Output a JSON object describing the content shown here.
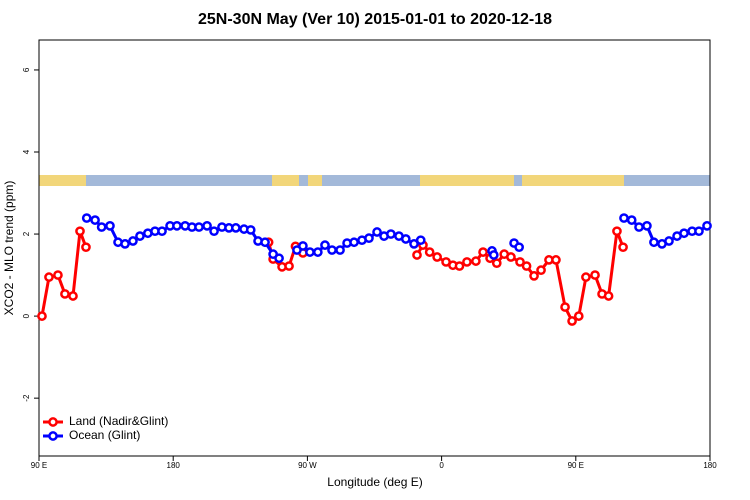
{
  "chart_data": {
    "type": "line",
    "title": "25N-30N May (Ver 10)   2015-01-01 to 2020-12-18",
    "x_label": "Longitude (deg E)",
    "y_label": "XCO2 - MLO trend (ppm)",
    "xlim": [
      90,
      540
    ],
    "ylim": [
      -3.41,
      6.73
    ],
    "xticks": [
      {
        "value": 90,
        "label": "90 E"
      },
      180,
      {
        "value": 270,
        "label": "90 W"
      },
      {
        "value": 360,
        "label": "0"
      },
      {
        "value": 450,
        "label": "90 E"
      },
      {
        "value": 540,
        "label": "180"
      }
    ],
    "yticks": [
      -2,
      0,
      2,
      4,
      6
    ],
    "legend": "bottomleft",
    "series": [
      {
        "name": "Land (Nadir&Glint)",
        "color": "#ff0000",
        "x": [
          92,
          96.7,
          102.7,
          107.4,
          112.8,
          117.5,
          121.5,
          null,
          244,
          247,
          253,
          257.7,
          262,
          267,
          null,
          343.5,
          347.5,
          352,
          357,
          363,
          367.6,
          372,
          377,
          383,
          387.8,
          392.5,
          397,
          402,
          406.5,
          412.6,
          417,
          422,
          426.7,
          432,
          436.7,
          442.8,
          447.5,
          452,
          456.8,
          462.9,
          467.6,
          472,
          477.6,
          481.7
        ],
        "values": [
          0.0,
          0.95,
          1.0,
          0.54,
          0.49,
          2.07,
          1.68,
          null,
          1.8,
          1.39,
          1.2,
          1.22,
          1.7,
          1.54,
          null,
          1.49,
          1.73,
          1.56,
          1.44,
          1.32,
          1.24,
          1.22,
          1.32,
          1.34,
          1.56,
          1.41,
          1.29,
          1.51,
          1.44,
          1.32,
          1.22,
          0.98,
          1.12,
          1.37,
          1.37,
          0.22,
          -0.12,
          0.0,
          0.95,
          1.0,
          0.54,
          0.49,
          2.07,
          1.68
        ]
      },
      {
        "name": "Ocean (Glint)",
        "color": "#0000ff",
        "x": [
          122,
          127.6,
          132,
          137.6,
          143,
          147.7,
          153,
          157.7,
          163,
          167.8,
          172.5,
          177.9,
          182.5,
          188,
          192.6,
          197.3,
          202.7,
          207.4,
          212.7,
          217.4,
          222,
          227.5,
          232,
          236.9,
          241.6,
          247,
          251,
          null,
          263,
          267,
          271.7,
          277,
          281.8,
          286.5,
          291.9,
          296.6,
          301.3,
          306.6,
          311.3,
          316.7,
          321.4,
          326,
          331.4,
          336,
          341.5,
          346,
          null,
          393.8,
          395,
          null,
          408.6,
          412,
          null,
          482.3,
          487.5,
          492.4,
          497.7,
          502.4,
          507.8,
          512.5,
          517.9,
          522.6,
          528,
          532.6,
          538
        ],
        "values": [
          2.39,
          2.34,
          2.17,
          2.2,
          1.8,
          1.76,
          1.83,
          1.95,
          2.02,
          2.07,
          2.07,
          2.2,
          2.2,
          2.2,
          2.17,
          2.17,
          2.2,
          2.07,
          2.17,
          2.15,
          2.15,
          2.12,
          2.1,
          1.83,
          1.8,
          1.51,
          1.41,
          null,
          1.61,
          1.71,
          1.56,
          1.56,
          1.73,
          1.61,
          1.61,
          1.78,
          1.8,
          1.85,
          1.9,
          2.05,
          1.95,
          2.0,
          1.95,
          1.88,
          1.76,
          1.85,
          null,
          1.59,
          1.49,
          null,
          1.78,
          1.68,
          null,
          2.39,
          2.34,
          2.17,
          2.2,
          1.8,
          1.76,
          1.83,
          1.95,
          2.02,
          2.07,
          2.07,
          2.2
        ]
      }
    ]
  }
}
